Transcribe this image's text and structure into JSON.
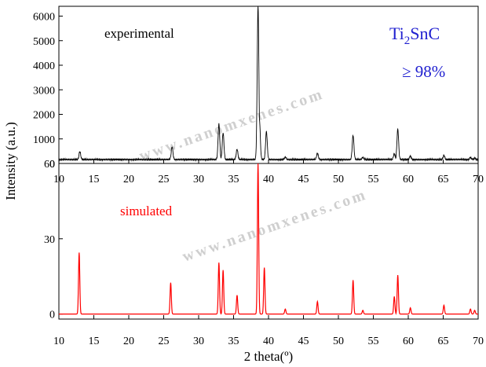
{
  "watermark": "www.nanomxenes.com",
  "shared_axis": {
    "y_label": "Intensity (a.u.)",
    "x_label": "2 theta(º)"
  },
  "chart_data": [
    {
      "type": "line",
      "annotation": "experimental",
      "formula": {
        "base": "Ti",
        "sub": "2",
        "rest": "SnC"
      },
      "purity": "≥ 98%",
      "color": "#000000",
      "xlim": [
        10,
        70
      ],
      "ylim": [
        0,
        6400
      ],
      "x_ticks": [
        10,
        15,
        20,
        25,
        30,
        35,
        40,
        45,
        50,
        55,
        60,
        65,
        70
      ],
      "y_ticks": [
        0,
        1000,
        2000,
        3000,
        4000,
        5000,
        6000
      ],
      "baseline": 160,
      "peaks": [
        {
          "x": 13.0,
          "y": 480
        },
        {
          "x": 26.2,
          "y": 680
        },
        {
          "x": 32.9,
          "y": 1600
        },
        {
          "x": 33.5,
          "y": 1250
        },
        {
          "x": 35.5,
          "y": 580
        },
        {
          "x": 38.5,
          "y": 6400
        },
        {
          "x": 38.7,
          "y": 1800
        },
        {
          "x": 39.7,
          "y": 1300
        },
        {
          "x": 42.4,
          "y": 260
        },
        {
          "x": 47.0,
          "y": 420
        },
        {
          "x": 52.1,
          "y": 1150
        },
        {
          "x": 53.5,
          "y": 250
        },
        {
          "x": 58.0,
          "y": 400
        },
        {
          "x": 58.5,
          "y": 1400
        },
        {
          "x": 60.3,
          "y": 300
        },
        {
          "x": 65.1,
          "y": 330
        },
        {
          "x": 68.9,
          "y": 250
        },
        {
          "x": 69.5,
          "y": 220
        }
      ]
    },
    {
      "type": "line",
      "annotation": "simulated",
      "color": "#ff0000",
      "xlim": [
        10,
        70
      ],
      "ylim": [
        -2,
        60
      ],
      "x_ticks": [
        10,
        15,
        20,
        25,
        30,
        35,
        40,
        45,
        50,
        55,
        60,
        65,
        70
      ],
      "y_ticks": [
        0,
        30,
        60
      ],
      "baseline": 0,
      "peaks": [
        {
          "x": 12.9,
          "y": 24.5
        },
        {
          "x": 26.0,
          "y": 12.5
        },
        {
          "x": 32.9,
          "y": 20.5
        },
        {
          "x": 33.5,
          "y": 17.5
        },
        {
          "x": 35.5,
          "y": 7.5
        },
        {
          "x": 38.5,
          "y": 60
        },
        {
          "x": 39.4,
          "y": 18.5
        },
        {
          "x": 42.4,
          "y": 2
        },
        {
          "x": 47.0,
          "y": 5
        },
        {
          "x": 52.1,
          "y": 13.5
        },
        {
          "x": 53.5,
          "y": 1.5
        },
        {
          "x": 58.0,
          "y": 7
        },
        {
          "x": 58.5,
          "y": 15.5
        },
        {
          "x": 60.3,
          "y": 2.5
        },
        {
          "x": 65.1,
          "y": 3.5
        },
        {
          "x": 68.9,
          "y": 2
        },
        {
          "x": 69.5,
          "y": 1.5
        }
      ]
    }
  ]
}
